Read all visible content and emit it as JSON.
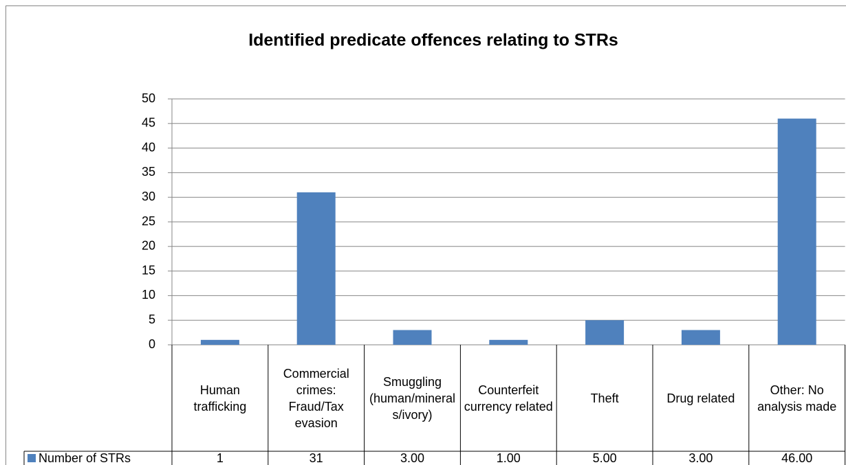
{
  "chart_data": {
    "type": "bar",
    "title": "Identified predicate offences relating to STRs",
    "categories": [
      "Human trafficking",
      "Commercial crimes: Fraud/Tax evasion",
      "Smuggling (human/minerals/ivory)",
      "Counterfeit currency related",
      "Theft",
      "Drug related",
      "Other: No analysis made"
    ],
    "series": [
      {
        "name": "Number of STRs",
        "color": "#4f81bd",
        "values": [
          1,
          31,
          3,
          1,
          5,
          3,
          46
        ],
        "value_labels": [
          "1",
          "31",
          "3.00",
          "1.00",
          "5.00",
          "3.00",
          "46.00"
        ]
      }
    ],
    "ylim": [
      0,
      50
    ],
    "yticks": [
      0,
      5,
      10,
      15,
      20,
      25,
      30,
      35,
      40,
      45,
      50
    ],
    "grid": true
  }
}
